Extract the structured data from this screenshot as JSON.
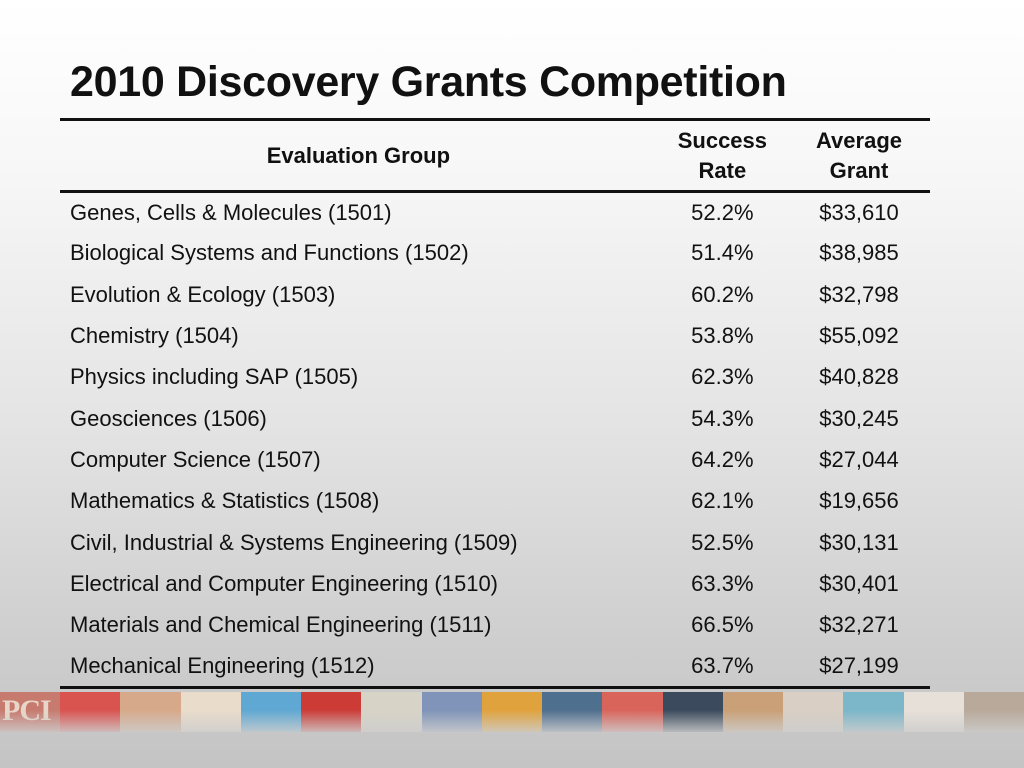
{
  "title": "2010 Discovery Grants Competition",
  "table": {
    "headers": {
      "group": "Evaluation Group",
      "rate_line1": "Success",
      "rate_line2": "Rate",
      "grant_line1": "Average",
      "grant_line2": "Grant"
    },
    "rows": [
      {
        "group": "Genes, Cells & Molecules (1501)",
        "rate": "52.2%",
        "grant": "$33,610"
      },
      {
        "group": "Biological Systems and Functions (1502)",
        "rate": "51.4%",
        "grant": "$38,985"
      },
      {
        "group": "Evolution & Ecology (1503)",
        "rate": "60.2%",
        "grant": "$32,798"
      },
      {
        "group": "Chemistry (1504)",
        "rate": "53.8%",
        "grant": "$55,092"
      },
      {
        "group": "Physics including SAP (1505)",
        "rate": "62.3%",
        "grant": "$40,828"
      },
      {
        "group": "Geosciences (1506)",
        "rate": "54.3%",
        "grant": "$30,245"
      },
      {
        "group": "Computer Science (1507)",
        "rate": "64.2%",
        "grant": "$27,044"
      },
      {
        "group": "Mathematics & Statistics (1508)",
        "rate": "62.1%",
        "grant": "$19,656"
      },
      {
        "group": "Civil, Industrial & Systems Engineering (1509)",
        "rate": "52.5%",
        "grant": "$30,131"
      },
      {
        "group": "Electrical and Computer Engineering (1510)",
        "rate": "63.3%",
        "grant": "$30,401"
      },
      {
        "group": "Materials and Chemical Engineering (1511)",
        "rate": "66.5%",
        "grant": "$32,271"
      },
      {
        "group": "Mechanical Engineering (1512)",
        "rate": "63.7%",
        "grant": "$27,199"
      }
    ]
  },
  "footer_strip": {
    "logo_text": "PCI",
    "tile_colors": [
      "#c77a6e",
      "#d9534f",
      "#d6a98a",
      "#e9dccb",
      "#5fa8d3",
      "#cc3b36",
      "#d8d3c7",
      "#7f94b8",
      "#e0a23c",
      "#4f6f8f",
      "#d9645a",
      "#3b4a5c",
      "#c9a077",
      "#d9cfc4",
      "#7bb6c9",
      "#e7e0d8",
      "#b8a99a"
    ]
  }
}
